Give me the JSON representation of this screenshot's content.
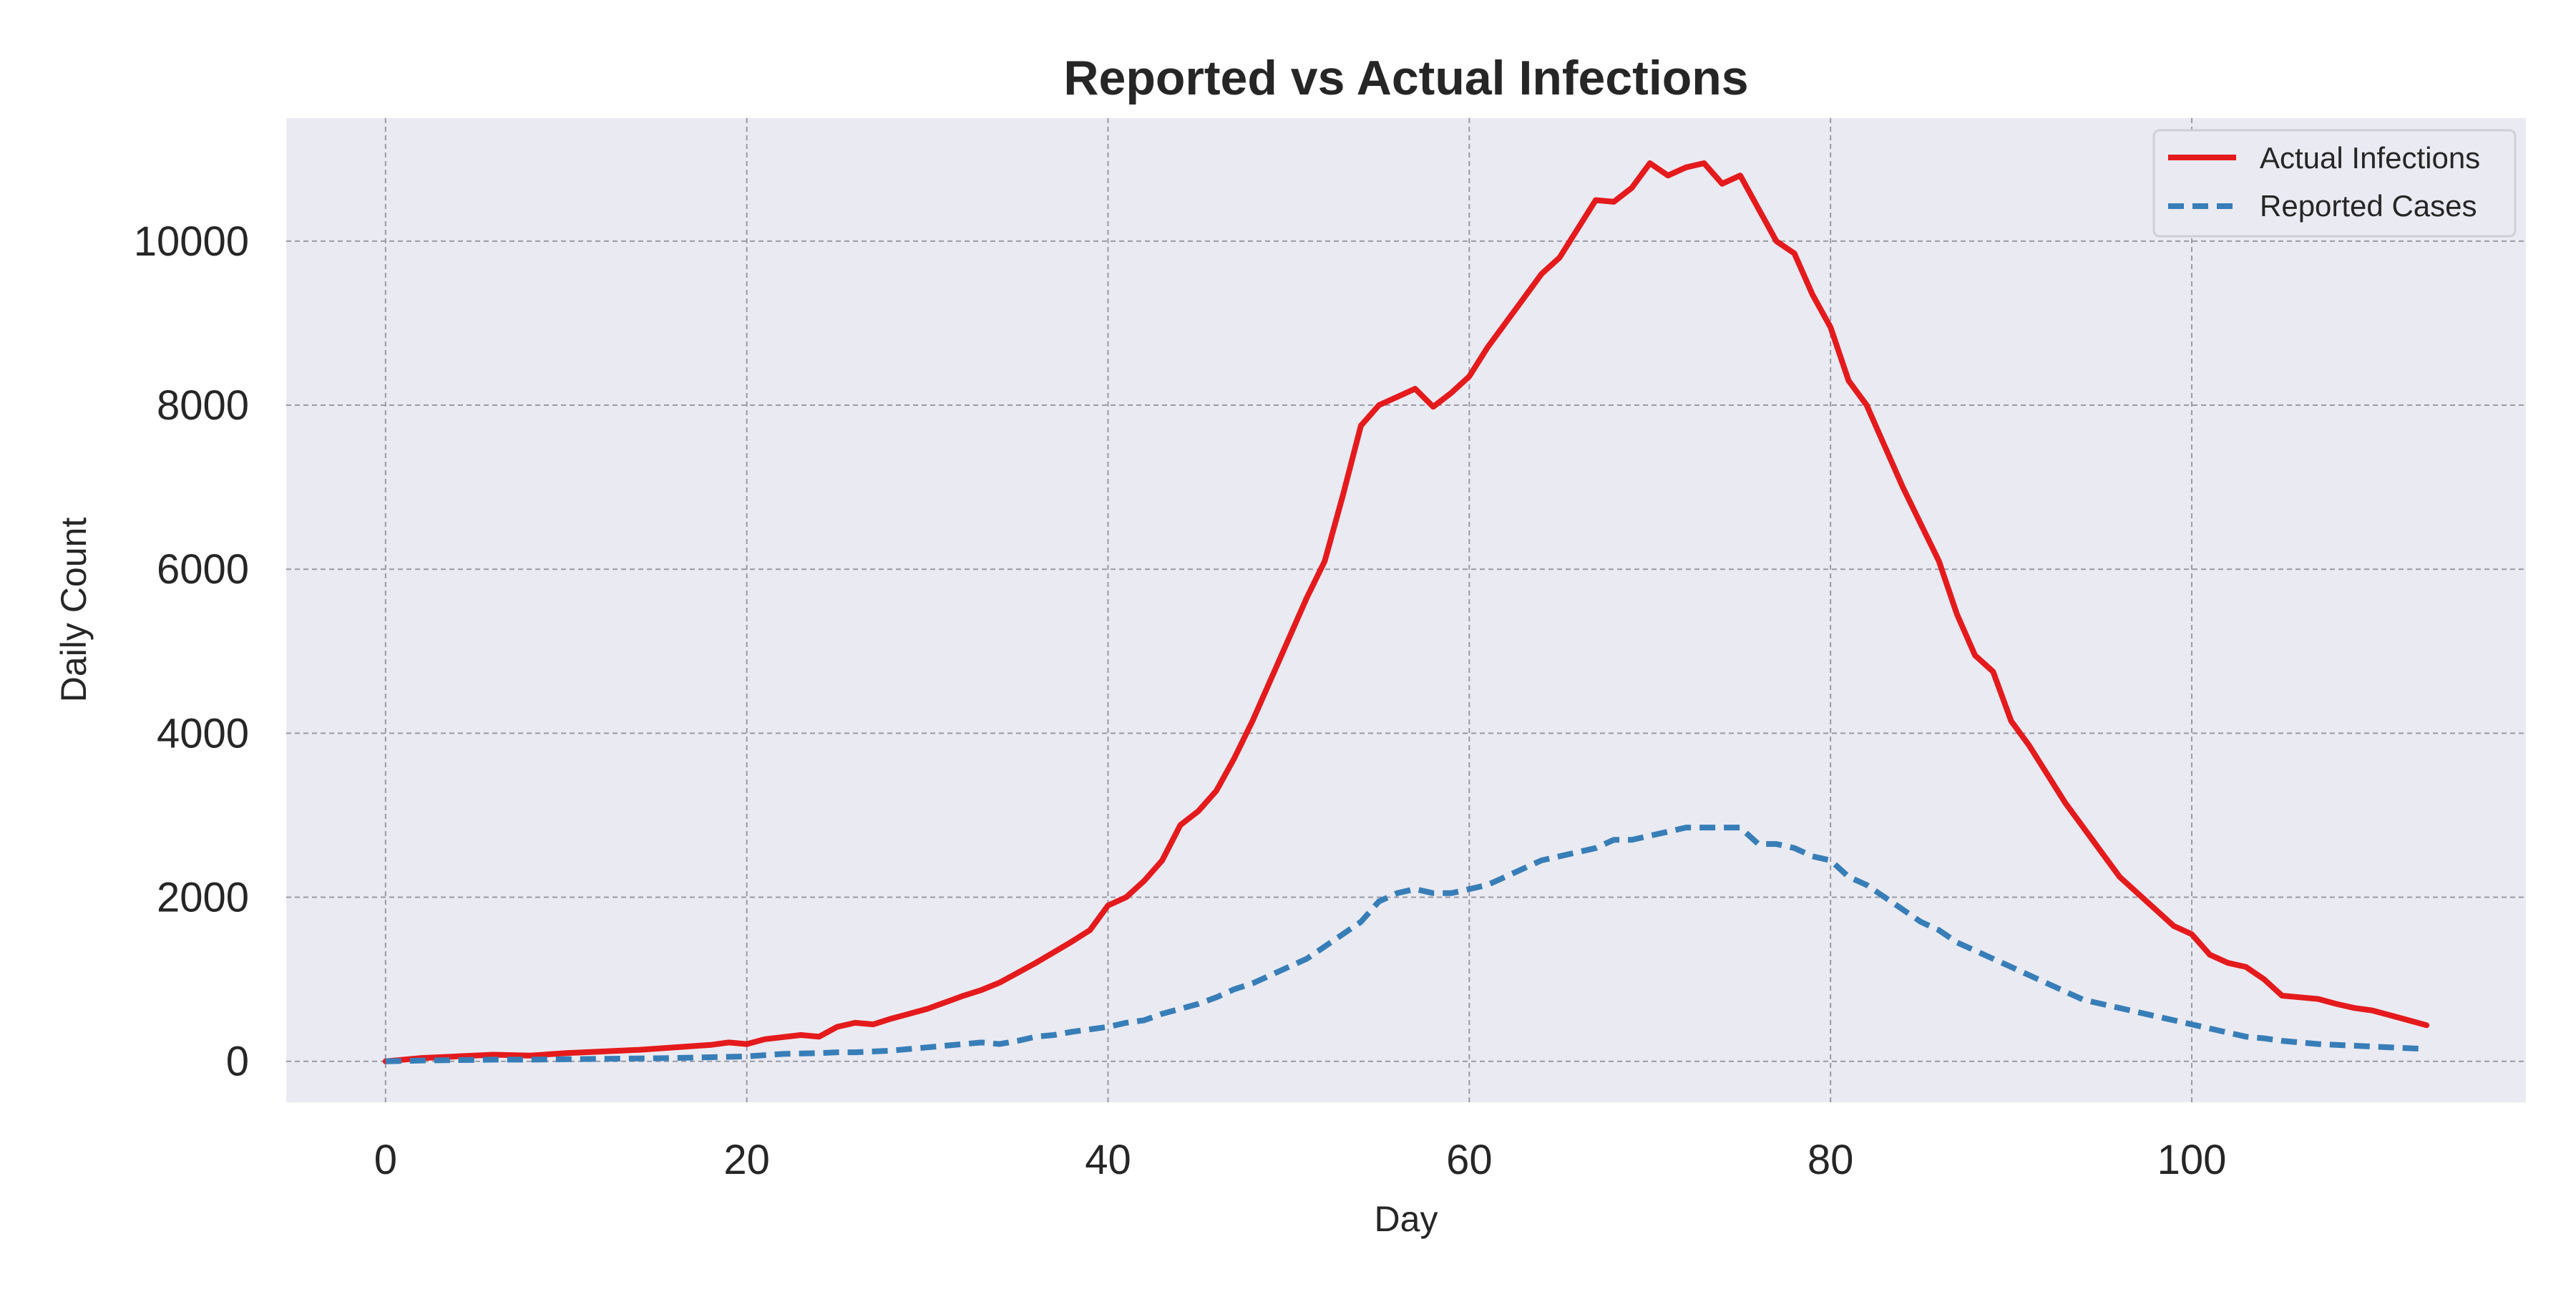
{
  "chart_data": {
    "type": "line",
    "title": "Reported vs Actual Infections",
    "xlabel": "Day",
    "ylabel": "Daily Count",
    "xlim": [
      -5.5,
      118.5
    ],
    "ylim": [
      -500,
      11500
    ],
    "xticks": [
      0,
      20,
      40,
      60,
      80,
      100
    ],
    "yticks": [
      0,
      2000,
      4000,
      6000,
      8000,
      10000
    ],
    "grid": true,
    "legend_position": "top-right",
    "colors": {
      "background": "#eaeaf2",
      "grid": "#9a9aa6",
      "actual": "#e41a1c",
      "reported": "#377eb8"
    },
    "series": [
      {
        "name": "Actual Infections",
        "style": "solid",
        "color": "#e41a1c",
        "x": [
          0,
          2,
          4,
          6,
          8,
          10,
          12,
          14,
          16,
          18,
          19,
          20,
          21,
          23,
          24,
          25,
          26,
          27,
          28,
          29,
          30,
          31,
          32,
          33,
          34,
          35,
          36,
          37,
          38,
          39,
          40,
          41,
          42,
          43,
          44,
          45,
          46,
          47,
          48,
          49,
          50,
          51,
          52,
          53,
          54,
          55,
          56,
          57,
          58,
          59,
          60,
          61,
          62,
          63,
          64,
          65,
          66,
          67,
          68,
          69,
          70,
          71,
          72,
          73,
          74,
          75,
          76,
          77,
          78,
          79,
          80,
          81,
          82,
          83,
          84,
          85,
          86,
          87,
          88,
          89,
          90,
          91,
          92,
          93,
          94,
          95,
          96,
          97,
          98,
          99,
          100,
          101,
          102,
          103,
          104,
          105,
          106,
          107,
          108,
          109,
          110,
          111,
          112,
          113
        ],
        "y": [
          0,
          40,
          60,
          80,
          70,
          100,
          120,
          140,
          170,
          200,
          230,
          210,
          270,
          320,
          300,
          420,
          470,
          450,
          520,
          580,
          640,
          720,
          800,
          870,
          960,
          1080,
          1200,
          1330,
          1460,
          1600,
          1900,
          2000,
          2200,
          2450,
          2880,
          3050,
          3300,
          3700,
          4150,
          4650,
          5150,
          5650,
          6100,
          6900,
          7750,
          8000,
          8100,
          8200,
          7980,
          8150,
          8350,
          8700,
          9000,
          9300,
          9600,
          9800,
          10150,
          10500,
          10480,
          10650,
          10950,
          10800,
          10900,
          10950,
          10700,
          10800,
          10400,
          10000,
          9850,
          9350,
          8950,
          8300,
          8000,
          7500,
          7000,
          6550,
          6100,
          5450,
          4950,
          4750,
          4150,
          3850,
          3500,
          3150,
          2850,
          2550,
          2250,
          2050,
          1850,
          1650,
          1550,
          1300,
          1200,
          1150,
          1000,
          800,
          780,
          760,
          700,
          650,
          620,
          560,
          500,
          440
        ]
      },
      {
        "name": "Reported Cases",
        "style": "dashed",
        "color": "#377eb8",
        "x": [
          0,
          2,
          4,
          6,
          8,
          10,
          12,
          14,
          16,
          18,
          20,
          21,
          22,
          24,
          25,
          26,
          27,
          28,
          29,
          30,
          31,
          32,
          33,
          34,
          35,
          36,
          37,
          38,
          39,
          40,
          41,
          42,
          43,
          44,
          45,
          46,
          47,
          48,
          49,
          50,
          51,
          52,
          53,
          54,
          55,
          56,
          57,
          58,
          59,
          60,
          61,
          62,
          63,
          64,
          65,
          66,
          67,
          68,
          69,
          70,
          71,
          72,
          73,
          74,
          75,
          76,
          77,
          78,
          79,
          80,
          81,
          82,
          83,
          84,
          85,
          86,
          87,
          88,
          89,
          90,
          91,
          92,
          93,
          94,
          95,
          96,
          97,
          98,
          99,
          100,
          101,
          102,
          103,
          104,
          105,
          106,
          107,
          108,
          109,
          110,
          111,
          112,
          113
        ],
        "y": [
          0,
          10,
          15,
          20,
          20,
          25,
          30,
          35,
          40,
          50,
          60,
          75,
          90,
          100,
          110,
          110,
          120,
          130,
          150,
          170,
          190,
          210,
          230,
          210,
          250,
          300,
          320,
          360,
          390,
          420,
          470,
          500,
          580,
          640,
          700,
          780,
          880,
          950,
          1050,
          1150,
          1250,
          1400,
          1550,
          1700,
          1950,
          2050,
          2100,
          2050,
          2050,
          2100,
          2150,
          2250,
          2350,
          2450,
          2500,
          2550,
          2600,
          2700,
          2700,
          2750,
          2800,
          2850,
          2850,
          2850,
          2850,
          2650,
          2650,
          2600,
          2500,
          2450,
          2250,
          2150,
          2000,
          1850,
          1700,
          1600,
          1450,
          1350,
          1250,
          1150,
          1050,
          950,
          850,
          750,
          700,
          650,
          600,
          550,
          500,
          450,
          400,
          350,
          300,
          280,
          250,
          230,
          210,
          200,
          190,
          180,
          170,
          160,
          150
        ]
      }
    ]
  }
}
